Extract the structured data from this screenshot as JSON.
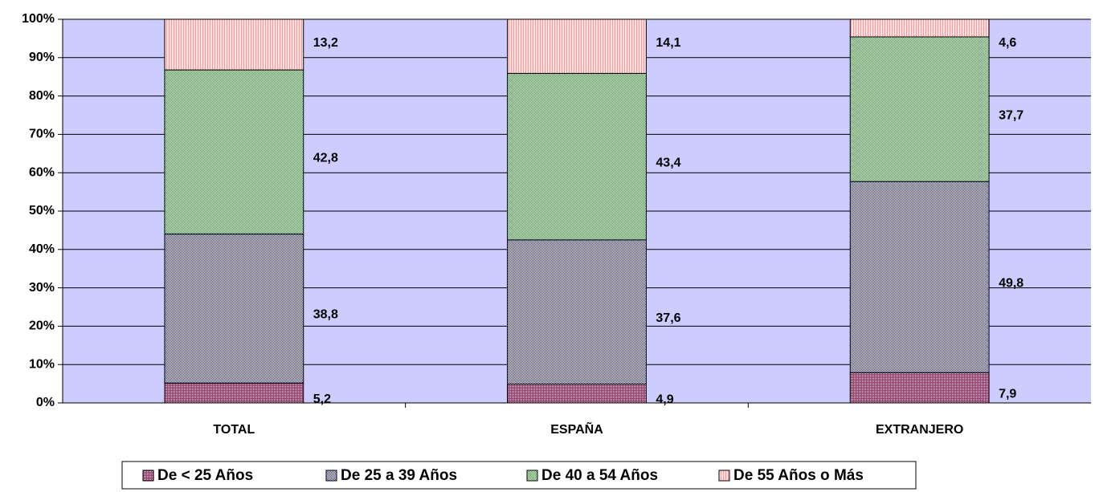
{
  "chart_data": {
    "type": "stacked_bar",
    "categories": [
      "TOTAL",
      "ESPAÑA",
      "EXTRANJERO"
    ],
    "series": [
      {
        "name": "De < 25 Años",
        "color": "#993366",
        "values": [
          5.2,
          4.9,
          7.9
        ],
        "value_labels": [
          "5,2",
          "4,9",
          "7,9"
        ]
      },
      {
        "name": "De 25 a 39 Años",
        "color": "#333399",
        "values": [
          38.8,
          37.6,
          49.8
        ],
        "value_labels": [
          "38,8",
          "37,6",
          "49,8"
        ]
      },
      {
        "name": "De 40 a 54 Años",
        "color": "#339933",
        "values": [
          42.8,
          43.4,
          37.7
        ],
        "value_labels": [
          "42,8",
          "43,4",
          "37,7"
        ]
      },
      {
        "name": "De 55 Años o Más",
        "color": "#ff9999",
        "values": [
          13.2,
          14.1,
          4.6
        ],
        "value_labels": [
          "13,2",
          "14,1",
          "4,6"
        ]
      }
    ],
    "ylim": [
      0,
      100
    ],
    "yticks": [
      {
        "value": 0,
        "label": "0%"
      },
      {
        "value": 10,
        "label": "10%"
      },
      {
        "value": 20,
        "label": "20%"
      },
      {
        "value": 30,
        "label": "30%"
      },
      {
        "value": 40,
        "label": "40%"
      },
      {
        "value": 50,
        "label": "50%"
      },
      {
        "value": 60,
        "label": "60%"
      },
      {
        "value": 70,
        "label": "70%"
      },
      {
        "value": 80,
        "label": "80%"
      },
      {
        "value": 90,
        "label": "90%"
      },
      {
        "value": 100,
        "label": "100%"
      }
    ],
    "grid": true,
    "plot_background": "#ccccff",
    "legend": "bottom"
  }
}
